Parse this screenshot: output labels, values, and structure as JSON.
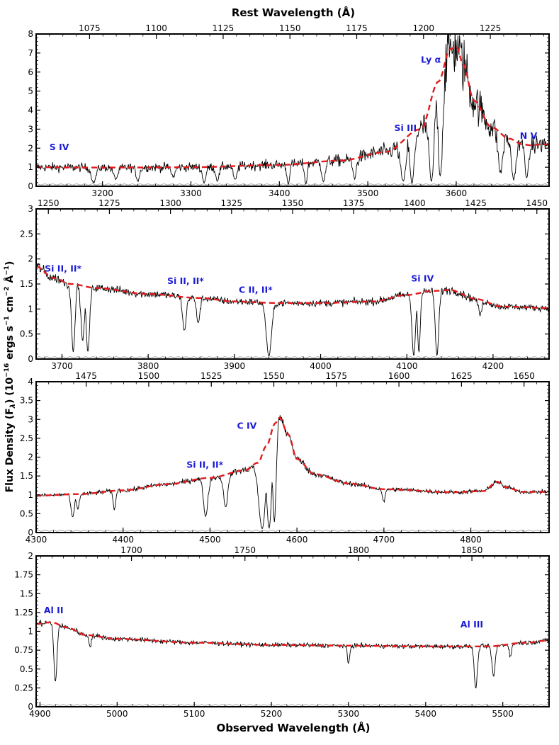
{
  "figure": {
    "top_xlabel": "Rest Wavelength (Å)",
    "bottom_xlabel": "Observed Wavelength (Å)",
    "ylabel_main": "Flux Density (F",
    "ylabel_sub": "λ",
    "ylabel_units": ") (10",
    "ylabel_exp1": "−16",
    "ylabel_rest": " ergs s",
    "ylabel_exp2": "−1",
    "ylabel_rest2": " cm",
    "ylabel_exp3": "−2",
    "ylabel_rest3": " Å",
    "ylabel_exp4": "−1",
    "ylabel_close": ")"
  },
  "colors": {
    "data": "#000000",
    "model": "#e41a1c",
    "error": "#9a9a9a",
    "annotation": "#1b1bd6"
  },
  "chart_data": [
    {
      "type": "line",
      "panel": 1,
      "obs_range": [
        3125,
        3705
      ],
      "rest_range": [
        1055,
        1247
      ],
      "ylim": [
        0,
        8
      ],
      "yticks": [
        0,
        1,
        2,
        3,
        4,
        5,
        6,
        7,
        8
      ],
      "obs_ticks": [
        3200,
        3300,
        3400,
        3500,
        3600
      ],
      "rest_ticks": [
        1075,
        1100,
        1125,
        1150,
        1175,
        1200,
        1225
      ],
      "model": [
        [
          3125,
          1.0
        ],
        [
          3200,
          0.98
        ],
        [
          3300,
          1.0
        ],
        [
          3400,
          1.12
        ],
        [
          3470,
          1.35
        ],
        [
          3520,
          1.8
        ],
        [
          3560,
          3.0
        ],
        [
          3580,
          5.5
        ],
        [
          3593,
          7.2
        ],
        [
          3600,
          7.35
        ],
        [
          3608,
          6.4
        ],
        [
          3620,
          4.5
        ],
        [
          3640,
          3.1
        ],
        [
          3660,
          2.5
        ],
        [
          3675,
          2.2
        ],
        [
          3685,
          2.15
        ],
        [
          3695,
          2.2
        ],
        [
          3705,
          2.2
        ]
      ],
      "annotations": [
        {
          "text": "S IV",
          "x": 3140,
          "y": 1.9
        },
        {
          "text": "Si III",
          "x": 3530,
          "y": 2.9
        },
        {
          "text": "Ly α",
          "x": 3560,
          "y": 6.5
        },
        {
          "text": "N V",
          "x": 3672,
          "y": 2.5
        }
      ],
      "absorptions": [
        [
          3190,
          0.8,
          2.5
        ],
        [
          3215,
          0.6,
          2.5
        ],
        [
          3240,
          0.7,
          2
        ],
        [
          3280,
          0.5,
          2
        ],
        [
          3315,
          0.8,
          2
        ],
        [
          3330,
          0.7,
          2
        ],
        [
          3350,
          0.7,
          2
        ],
        [
          3410,
          0.9,
          1.5
        ],
        [
          3430,
          0.9,
          1.5
        ],
        [
          3450,
          0.8,
          2
        ],
        [
          3485,
          0.7,
          2
        ],
        [
          3540,
          0.9,
          3
        ],
        [
          3550,
          0.95,
          2.5
        ],
        [
          3572,
          0.95,
          3
        ],
        [
          3582,
          0.9,
          2.5
        ],
        [
          3650,
          0.75,
          2.5
        ],
        [
          3665,
          0.85,
          2.5
        ],
        [
          3680,
          0.8,
          2
        ]
      ],
      "noise": 0.22
    },
    {
      "type": "line",
      "panel": 2,
      "obs_range": [
        3670,
        4265
      ],
      "rest_range": [
        1245,
        1455
      ],
      "ylim": [
        0,
        3
      ],
      "yticks": [
        0.0,
        0.5,
        1.0,
        1.5,
        2.0,
        2.5,
        3.0
      ],
      "obs_ticks": [
        3700,
        3800,
        3900,
        4000,
        4100,
        4200
      ],
      "rest_ticks": [
        1250,
        1275,
        1300,
        1325,
        1350,
        1375,
        1400,
        1425,
        1450
      ],
      "model": [
        [
          3670,
          1.85
        ],
        [
          3690,
          1.62
        ],
        [
          3710,
          1.5
        ],
        [
          3740,
          1.42
        ],
        [
          3800,
          1.3
        ],
        [
          3860,
          1.22
        ],
        [
          3900,
          1.15
        ],
        [
          3950,
          1.12
        ],
        [
          4000,
          1.12
        ],
        [
          4060,
          1.15
        ],
        [
          4100,
          1.28
        ],
        [
          4130,
          1.36
        ],
        [
          4150,
          1.38
        ],
        [
          4180,
          1.2
        ],
        [
          4210,
          1.05
        ],
        [
          4265,
          1.02
        ]
      ],
      "annotations": [
        {
          "text": "Si II, II*",
          "x": 3680,
          "y": 1.75
        },
        {
          "text": "Si II, II*",
          "x": 3822,
          "y": 1.5
        },
        {
          "text": "C II, II*",
          "x": 3905,
          "y": 1.32
        },
        {
          "text": "Si IV",
          "x": 4105,
          "y": 1.55
        }
      ],
      "absorptions": [
        [
          3713,
          0.9,
          2
        ],
        [
          3724,
          0.75,
          2
        ],
        [
          3730,
          0.9,
          2
        ],
        [
          3842,
          0.55,
          2
        ],
        [
          3858,
          0.4,
          2
        ],
        [
          3940,
          0.95,
          3
        ],
        [
          4108,
          0.95,
          2
        ],
        [
          4114,
          0.9,
          1.5
        ],
        [
          4135,
          0.95,
          2
        ],
        [
          4185,
          0.25,
          2
        ]
      ],
      "noise": 0.06
    },
    {
      "type": "line",
      "panel": 3,
      "obs_range": [
        4300,
        4890
      ],
      "rest_range": [
        1455,
        1660
      ],
      "ylim": [
        0,
        4
      ],
      "yticks": [
        0.0,
        0.5,
        1.0,
        1.5,
        2.0,
        2.5,
        3.0,
        3.5,
        4.0
      ],
      "obs_ticks": [
        4300,
        4400,
        4500,
        4600,
        4700,
        4800
      ],
      "rest_ticks": [
        1475,
        1500,
        1525,
        1550,
        1575,
        1600,
        1625,
        1650
      ],
      "model": [
        [
          4300,
          0.98
        ],
        [
          4350,
          1.02
        ],
        [
          4400,
          1.12
        ],
        [
          4450,
          1.28
        ],
        [
          4500,
          1.45
        ],
        [
          4540,
          1.65
        ],
        [
          4555,
          1.85
        ],
        [
          4565,
          2.3
        ],
        [
          4575,
          2.9
        ],
        [
          4580,
          3.05
        ],
        [
          4590,
          2.6
        ],
        [
          4600,
          1.95
        ],
        [
          4620,
          1.55
        ],
        [
          4660,
          1.3
        ],
        [
          4700,
          1.15
        ],
        [
          4780,
          1.07
        ],
        [
          4815,
          1.1
        ],
        [
          4830,
          1.35
        ],
        [
          4840,
          1.2
        ],
        [
          4860,
          1.08
        ],
        [
          4890,
          1.08
        ]
      ],
      "annotations": [
        {
          "text": "C IV",
          "x": 4531,
          "y": 2.75
        },
        {
          "text": "Si II, II*",
          "x": 4473,
          "y": 1.72
        }
      ],
      "absorptions": [
        [
          4342,
          0.6,
          2
        ],
        [
          4348,
          0.4,
          1.5
        ],
        [
          4390,
          0.45,
          1.5
        ],
        [
          4495,
          0.7,
          2.5
        ],
        [
          4518,
          0.55,
          2.5
        ],
        [
          4560,
          0.95,
          4
        ],
        [
          4568,
          0.95,
          3
        ],
        [
          4574,
          0.9,
          2
        ],
        [
          4700,
          0.3,
          1.5
        ]
      ],
      "noise": 0.05
    },
    {
      "type": "line",
      "panel": 4,
      "obs_range": [
        4895,
        5560
      ],
      "rest_range": [
        1658,
        1884
      ],
      "ylim": [
        0,
        2
      ],
      "yticks": [
        0.0,
        0.25,
        0.5,
        0.75,
        1.0,
        1.25,
        1.5,
        1.75,
        2.0
      ],
      "obs_ticks": [
        4900,
        5000,
        5100,
        5200,
        5300,
        5400,
        5500
      ],
      "rest_ticks": [
        1700,
        1750,
        1800,
        1850
      ],
      "model": [
        [
          4895,
          1.1
        ],
        [
          4915,
          1.12
        ],
        [
          4935,
          1.05
        ],
        [
          4960,
          0.95
        ],
        [
          5000,
          0.9
        ],
        [
          5100,
          0.85
        ],
        [
          5200,
          0.82
        ],
        [
          5300,
          0.81
        ],
        [
          5400,
          0.8
        ],
        [
          5480,
          0.8
        ],
        [
          5530,
          0.85
        ],
        [
          5560,
          0.88
        ]
      ],
      "annotations": [
        {
          "text": "Al II",
          "x": 4905,
          "y": 1.24
        },
        {
          "text": "Al III",
          "x": 5445,
          "y": 1.05
        }
      ],
      "absorptions": [
        [
          4920,
          0.7,
          2
        ],
        [
          4965,
          0.15,
          1.5
        ],
        [
          5300,
          0.3,
          1.5
        ],
        [
          5465,
          0.7,
          2
        ],
        [
          5488,
          0.5,
          2
        ],
        [
          5510,
          0.2,
          1.5
        ]
      ],
      "noise": 0.035
    }
  ]
}
